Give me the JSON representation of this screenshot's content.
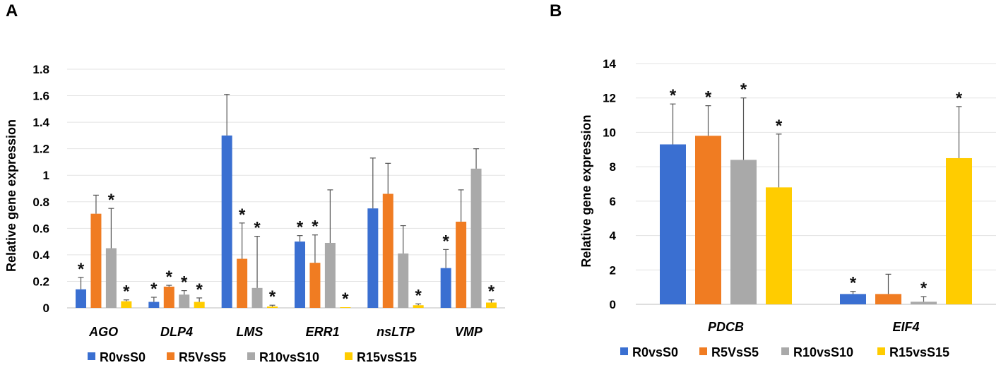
{
  "panels": {
    "a_label": "A",
    "b_label": "B"
  },
  "series_names": [
    "R0vsS0",
    "R5VsS5",
    "R10vsS10",
    "R15vsS15"
  ],
  "series_colors": [
    "#3a6fd1",
    "#f07c22",
    "#a9a9a9",
    "#ffcc00"
  ],
  "chart_data": [
    {
      "type": "bar",
      "panel": "A",
      "ylabel": "Relative gene expression",
      "ylim": [
        0,
        1.8
      ],
      "yticks": [
        0,
        0.2,
        0.4,
        0.6,
        0.8,
        1,
        1.2,
        1.4,
        1.6,
        1.8
      ],
      "ytick_labels": [
        "0",
        "0.2",
        "0.4",
        "0.6",
        "0.8",
        "1",
        "1.2",
        "1.4",
        "1.6",
        "1.8"
      ],
      "categories": [
        "AGO",
        "DLP4",
        "LMS",
        "ERR1",
        "nsLTP",
        "VMP"
      ],
      "series": [
        {
          "name": "R0vsS0",
          "values": [
            0.14,
            0.045,
            1.3,
            0.5,
            0.75,
            0.3
          ],
          "errors": [
            0.09,
            0.035,
            0.31,
            0.045,
            0.38,
            0.14
          ],
          "significant": [
            true,
            true,
            false,
            true,
            false,
            true
          ]
        },
        {
          "name": "R5VsS5",
          "values": [
            0.71,
            0.16,
            0.37,
            0.34,
            0.86,
            0.65
          ],
          "errors": [
            0.14,
            0.01,
            0.27,
            0.21,
            0.23,
            0.24
          ],
          "significant": [
            false,
            true,
            true,
            true,
            false,
            false
          ]
        },
        {
          "name": "R10vsS10",
          "values": [
            0.45,
            0.1,
            0.15,
            0.49,
            0.41,
            1.05
          ],
          "errors": [
            0.3,
            0.03,
            0.39,
            0.4,
            0.21,
            0.15
          ],
          "significant": [
            true,
            true,
            true,
            false,
            false,
            false
          ]
        },
        {
          "name": "R15vsS15",
          "values": [
            0.05,
            0.045,
            0.01,
            0.005,
            0.02,
            0.04
          ],
          "errors": [
            0.01,
            0.03,
            0.01,
            0.0,
            0.01,
            0.02
          ],
          "significant": [
            true,
            true,
            true,
            true,
            true,
            true
          ]
        }
      ]
    },
    {
      "type": "bar",
      "panel": "B",
      "ylabel": "Relative gene expression",
      "ylim": [
        0,
        14
      ],
      "yticks": [
        0,
        2,
        4,
        6,
        8,
        10,
        12,
        14
      ],
      "ytick_labels": [
        "0",
        "2",
        "4",
        "6",
        "8",
        "10",
        "12",
        "14"
      ],
      "categories": [
        "PDCB",
        "EIF4"
      ],
      "series": [
        {
          "name": "R0vsS0",
          "values": [
            9.3,
            0.6
          ],
          "errors": [
            2.35,
            0.15
          ],
          "significant": [
            true,
            true
          ]
        },
        {
          "name": "R5VsS5",
          "values": [
            9.8,
            0.6
          ],
          "errors": [
            1.75,
            1.15
          ],
          "significant": [
            true,
            false
          ]
        },
        {
          "name": "R10vsS10",
          "values": [
            8.4,
            0.15
          ],
          "errors": [
            3.6,
            0.3
          ],
          "significant": [
            true,
            true
          ]
        },
        {
          "name": "R15vsS15",
          "values": [
            6.8,
            8.5
          ],
          "errors": [
            3.1,
            3.0
          ],
          "significant": [
            true,
            true
          ]
        }
      ]
    }
  ],
  "significance_marker": "*"
}
